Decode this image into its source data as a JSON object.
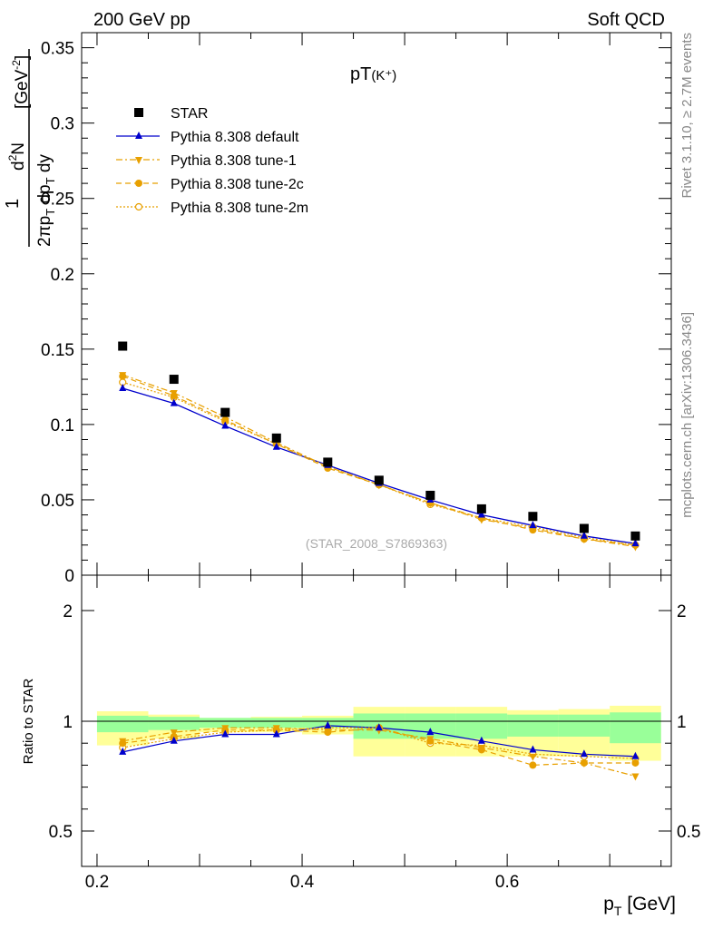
{
  "header": {
    "left": "200 GeV pp",
    "right": "Soft QCD"
  },
  "side_labels": {
    "upper": "Rivet 3.1.10, ≥ 2.7M events",
    "lower": "mcplots.cern.ch [arXiv:1306.3436]"
  },
  "plot_title_main": "pT",
  "plot_title_sub": "(K⁺)",
  "analysis_id": "(STAR_2008_S7869363)",
  "y_axis_label": "1/(2π p_T) d²N/(dp_T dy) [GeV⁻²]",
  "ratio_axis_label": "Ratio to STAR",
  "x_axis_label": "p_T [GeV]",
  "colors": {
    "star": "#000000",
    "default": "#0000cc",
    "tunes": "#e8a000",
    "band_inner": "#99ff99",
    "band_outer": "#ffff99"
  },
  "chart_data": [
    {
      "type": "line",
      "xlim": [
        0.185,
        0.76
      ],
      "ylim": [
        0,
        0.36
      ],
      "x_ticks": [
        0.2,
        0.4,
        0.6
      ],
      "y_ticks": [
        "0",
        "0.05",
        "0.1",
        "0.15",
        "0.2",
        "0.25",
        "0.3",
        "0.35"
      ],
      "x": [
        0.225,
        0.275,
        0.325,
        0.375,
        0.425,
        0.475,
        0.525,
        0.575,
        0.625,
        0.675,
        0.725
      ],
      "series": [
        {
          "name": "STAR",
          "marker": "square",
          "values": [
            0.152,
            0.13,
            0.108,
            0.091,
            0.075,
            0.063,
            0.053,
            0.044,
            0.039,
            0.031,
            0.026
          ]
        },
        {
          "name": "Pythia 8.308 default",
          "marker": "triangle-up",
          "line": "solid",
          "values": [
            0.124,
            0.114,
            0.099,
            0.085,
            0.073,
            0.061,
            0.05,
            0.04,
            0.033,
            0.026,
            0.021
          ]
        },
        {
          "name": "Pythia 8.308 tune-1",
          "marker": "triangle-down",
          "line": "dash-dot",
          "values": [
            0.133,
            0.121,
            0.105,
            0.088,
            0.072,
            0.06,
            0.048,
            0.037,
            0.031,
            0.024,
            0.019
          ]
        },
        {
          "name": "Pythia 8.308 tune-2c",
          "marker": "circle",
          "line": "dashed",
          "values": [
            0.132,
            0.119,
            0.103,
            0.087,
            0.071,
            0.06,
            0.048,
            0.038,
            0.03,
            0.024,
            0.02
          ]
        },
        {
          "name": "Pythia 8.308 tune-2m",
          "marker": "open-circle",
          "line": "dotted",
          "values": [
            0.128,
            0.118,
            0.102,
            0.087,
            0.072,
            0.06,
            0.047,
            0.038,
            0.032,
            0.025,
            0.02
          ]
        }
      ]
    },
    {
      "type": "line",
      "ylabel": "Ratio to STAR",
      "xlim": [
        0.185,
        0.76
      ],
      "ylim": [
        0.35,
        2.3
      ],
      "x_ticks": [
        0.2,
        0.4,
        0.6
      ],
      "y_ticks": [
        "0.5",
        "1",
        "2"
      ],
      "band_edges": [
        0.2,
        0.25,
        0.3,
        0.35,
        0.4,
        0.45,
        0.5,
        0.55,
        0.6,
        0.65,
        0.7,
        0.75
      ],
      "band_inner": [
        [
          0.95,
          1.05
        ],
        [
          0.96,
          1.04
        ],
        [
          0.97,
          1.03
        ],
        [
          0.97,
          1.03
        ],
        [
          0.97,
          1.03
        ],
        [
          0.92,
          1.07
        ],
        [
          0.92,
          1.07
        ],
        [
          0.92,
          1.07
        ],
        [
          0.93,
          1.06
        ],
        [
          0.93,
          1.06
        ],
        [
          0.9,
          1.08
        ]
      ],
      "band_outer": [
        [
          0.89,
          1.09
        ],
        [
          0.92,
          1.06
        ],
        [
          0.95,
          1.03
        ],
        [
          0.95,
          1.04
        ],
        [
          0.94,
          1.05
        ],
        [
          0.84,
          1.13
        ],
        [
          0.84,
          1.13
        ],
        [
          0.84,
          1.13
        ],
        [
          0.84,
          1.1
        ],
        [
          0.84,
          1.11
        ],
        [
          0.82,
          1.14
        ]
      ],
      "x": [
        0.225,
        0.275,
        0.325,
        0.375,
        0.425,
        0.475,
        0.525,
        0.575,
        0.625,
        0.675,
        0.725
      ],
      "series": [
        {
          "name": "Pythia 8.308 default",
          "values": [
            0.86,
            0.91,
            0.94,
            0.94,
            0.98,
            0.97,
            0.95,
            0.91,
            0.87,
            0.85,
            0.84
          ]
        },
        {
          "name": "Pythia 8.308 tune-1",
          "values": [
            0.91,
            0.95,
            0.97,
            0.97,
            0.96,
            0.96,
            0.92,
            0.88,
            0.84,
            0.81,
            0.75
          ]
        },
        {
          "name": "Pythia 8.308 tune-2c",
          "values": [
            0.9,
            0.93,
            0.96,
            0.96,
            0.95,
            0.97,
            0.91,
            0.87,
            0.8,
            0.81,
            0.81
          ]
        },
        {
          "name": "Pythia 8.308 tune-2m",
          "values": [
            0.88,
            0.92,
            0.95,
            0.96,
            0.97,
            0.97,
            0.9,
            0.89,
            0.85,
            0.84,
            0.83
          ]
        }
      ]
    }
  ]
}
